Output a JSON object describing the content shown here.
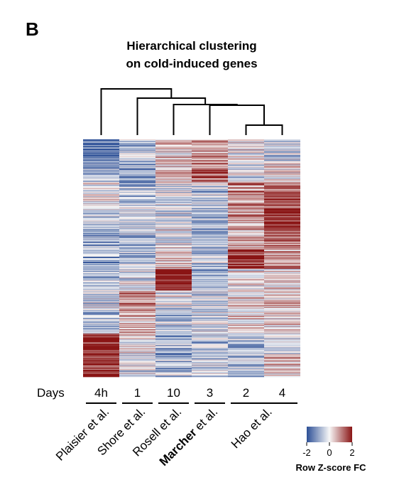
{
  "panel_letter": "B",
  "title": {
    "line1": "Hierarchical clustering",
    "line2": "on cold-induced genes"
  },
  "days_label": "Days",
  "chart_data": {
    "type": "heatmap",
    "columns": [
      {
        "day": "4h",
        "study": "Plaisier et al."
      },
      {
        "day": "1",
        "study": "Shore et al."
      },
      {
        "day": "10",
        "study": "Rosell et al."
      },
      {
        "day": "3",
        "study": "Marcher et al."
      },
      {
        "day": "2",
        "study": "Hao et al."
      },
      {
        "day": "4",
        "study": "Hao et al."
      }
    ],
    "studies": [
      {
        "name": "Plaisier et al.",
        "columns": [
          "4h"
        ]
      },
      {
        "name": "Shore et al.",
        "columns": [
          "1"
        ]
      },
      {
        "name": "Rosell et al.",
        "columns": [
          "10"
        ]
      },
      {
        "name_bold": "Marcher",
        "name_rest": " et al.",
        "columns": [
          "3"
        ]
      },
      {
        "name": "Hao et al.",
        "columns": [
          "2",
          "4"
        ]
      }
    ],
    "dendrogram_order": [
      "4h",
      "1",
      "10",
      "3",
      "2",
      "4"
    ],
    "dendrogram_merges": [
      [
        "2",
        "4"
      ],
      [
        "3",
        "(2,4)"
      ],
      [
        "10",
        "(3,(2,4))"
      ],
      [
        "1",
        "(10,(3,(2,4)))"
      ],
      [
        "4h",
        "(1,(10,(3,(2,4))))"
      ]
    ],
    "color_scale": {
      "title": "Row Z-score FC",
      "min": -2,
      "mid": 0,
      "max": 2,
      "ticks": [
        "-2",
        "0",
        "2"
      ],
      "low_color": "#2c4f96",
      "mid_color": "#f7f7f7",
      "high_color": "#8a1515"
    },
    "row_blocks": [
      [
        -1.7,
        -0.6,
        0.3,
        0.8,
        0.0,
        -0.5
      ],
      [
        -0.9,
        -0.8,
        0.4,
        1.2,
        -0.3,
        0.2
      ],
      [
        0.0,
        -0.7,
        -0.3,
        -0.5,
        0.8,
        1.6
      ],
      [
        -0.6,
        -0.3,
        -0.2,
        -0.8,
        0.7,
        1.9
      ],
      [
        -0.8,
        -0.6,
        -0.1,
        -0.8,
        0.6,
        1.3
      ],
      [
        -0.9,
        -0.7,
        0.5,
        -0.6,
        1.8,
        0.8
      ],
      [
        -0.7,
        -0.2,
        2.1,
        -0.9,
        0.0,
        0.3
      ],
      [
        -0.4,
        0.9,
        -0.2,
        -0.5,
        0.3,
        0.4
      ],
      [
        -0.8,
        0.6,
        -0.5,
        -0.3,
        0.2,
        0.1
      ],
      [
        1.9,
        0.0,
        -0.9,
        -0.6,
        -0.6,
        -0.4
      ],
      [
        1.6,
        -0.3,
        -0.6,
        -0.4,
        -0.7,
        0.5
      ]
    ]
  }
}
